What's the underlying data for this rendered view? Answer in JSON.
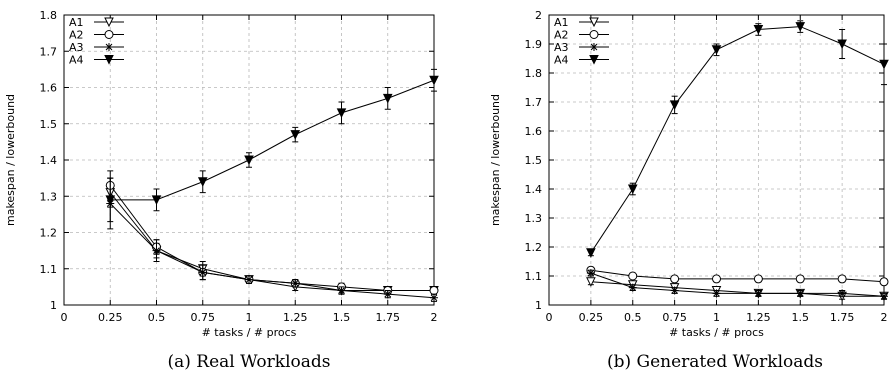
{
  "chart_data": [
    {
      "type": "line",
      "caption": "(a) Real Workloads",
      "xlabel": "# tasks / # procs",
      "ylabel": "makespan / lowerbound",
      "xlim": [
        0,
        2
      ],
      "ylim": [
        1,
        1.8
      ],
      "xticks": [
        0,
        0.25,
        0.5,
        0.75,
        1,
        1.25,
        1.5,
        1.75,
        2
      ],
      "xtick_labels": [
        "0",
        "0.25",
        "0.5",
        "0.75",
        "1",
        "1.25",
        "1.5",
        "1.75",
        "2"
      ],
      "yticks": [
        1,
        1.1,
        1.2,
        1.3,
        1.4,
        1.5,
        1.6,
        1.7,
        1.8
      ],
      "ytick_labels": [
        "1",
        "1.1",
        "1.2",
        "1.3",
        "1.4",
        "1.5",
        "1.6",
        "1.7",
        "1.8"
      ],
      "grid": true,
      "legend_position": "top-left",
      "x": [
        0.25,
        0.5,
        0.75,
        1,
        1.25,
        1.5,
        1.75,
        2
      ],
      "series": [
        {
          "name": "A1",
          "marker": "triangle-down-open",
          "values": [
            1.31,
            1.15,
            1.1,
            1.07,
            1.05,
            1.04,
            1.04,
            1.04
          ],
          "err": [
            0.04,
            0.02,
            0.02,
            0.01,
            0.01,
            0.01,
            0.01,
            0.01
          ]
        },
        {
          "name": "A2",
          "marker": "circle-open",
          "values": [
            1.33,
            1.16,
            1.09,
            1.07,
            1.06,
            1.05,
            1.04,
            1.04
          ],
          "err": [
            0.04,
            0.02,
            0.02,
            0.01,
            0.01,
            0.01,
            0.01,
            0.01
          ]
        },
        {
          "name": "A3",
          "marker": "star",
          "values": [
            1.28,
            1.15,
            1.09,
            1.07,
            1.06,
            1.04,
            1.03,
            1.02
          ],
          "err": [
            0.07,
            0.03,
            0.02,
            0.01,
            0.01,
            0.01,
            0.01,
            0.01
          ]
        },
        {
          "name": "A4",
          "marker": "triangle-down-filled",
          "values": [
            1.29,
            1.29,
            1.34,
            1.4,
            1.47,
            1.53,
            1.57,
            1.62
          ],
          "err": [
            0.06,
            0.03,
            0.03,
            0.02,
            0.02,
            0.03,
            0.03,
            0.03
          ]
        }
      ]
    },
    {
      "type": "line",
      "caption": "(b) Generated Workloads",
      "xlabel": "# tasks / # procs",
      "ylabel": "makespan / lowerbound",
      "xlim": [
        0,
        2
      ],
      "ylim": [
        1,
        2
      ],
      "xticks": [
        0,
        0.25,
        0.5,
        0.75,
        1,
        1.25,
        1.5,
        1.75,
        2
      ],
      "xtick_labels": [
        "0",
        "0.25",
        "0.5",
        "0.75",
        "1",
        "1.25",
        "1.5",
        "1.75",
        "2"
      ],
      "yticks": [
        1,
        1.1,
        1.2,
        1.3,
        1.4,
        1.5,
        1.6,
        1.7,
        1.8,
        1.9,
        2
      ],
      "ytick_labels": [
        "1",
        "1.1",
        "1.2",
        "1.3",
        "1.4",
        "1.5",
        "1.6",
        "1.7",
        "1.8",
        "1.9",
        "2"
      ],
      "grid": true,
      "legend_position": "top-left",
      "x": [
        0.25,
        0.5,
        0.75,
        1,
        1.25,
        1.5,
        1.75,
        2
      ],
      "series": [
        {
          "name": "A1",
          "marker": "triangle-down-open",
          "values": [
            1.08,
            1.07,
            1.06,
            1.05,
            1.04,
            1.04,
            1.03,
            1.03
          ],
          "err": [
            0.01,
            0.01,
            0.01,
            0.01,
            0.01,
            0.01,
            0.01,
            0.01
          ]
        },
        {
          "name": "A2",
          "marker": "circle-open",
          "values": [
            1.12,
            1.1,
            1.09,
            1.09,
            1.09,
            1.09,
            1.09,
            1.08
          ],
          "err": [
            0.01,
            0.01,
            0.01,
            0.01,
            0.01,
            0.01,
            0.01,
            0.01
          ]
        },
        {
          "name": "A3",
          "marker": "star",
          "values": [
            1.11,
            1.06,
            1.05,
            1.04,
            1.04,
            1.04,
            1.04,
            1.03
          ],
          "err": [
            0.01,
            0.01,
            0.01,
            0.01,
            0.01,
            0.01,
            0.01,
            0.01
          ]
        },
        {
          "name": "A4",
          "marker": "triangle-down-filled",
          "values": [
            1.18,
            1.4,
            1.69,
            1.88,
            1.95,
            1.96,
            1.9,
            1.83
          ],
          "err": [
            0.01,
            0.02,
            0.03,
            0.02,
            0.02,
            0.02,
            0.05,
            0.07
          ]
        }
      ]
    }
  ]
}
